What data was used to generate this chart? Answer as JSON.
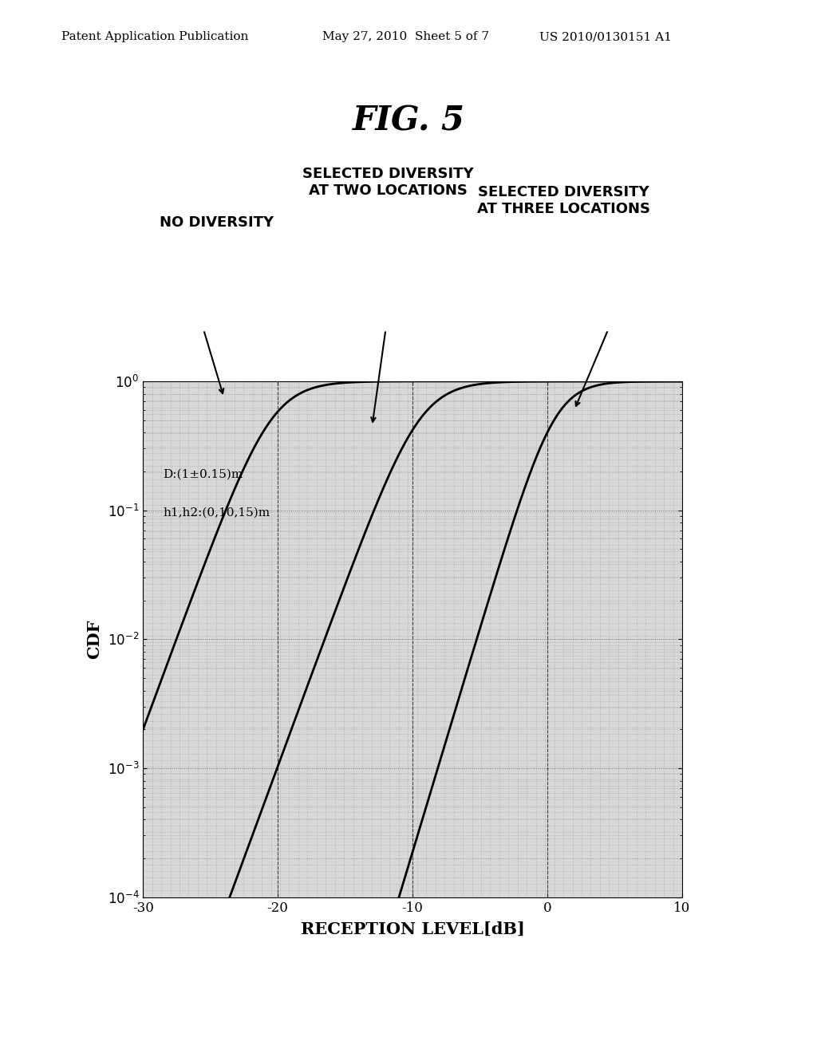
{
  "title": "FIG. 5",
  "header_left": "Patent Application Publication",
  "header_mid": "May 27, 2010  Sheet 5 of 7",
  "header_right": "US 2010/0130151 A1",
  "xlabel": "RECEPTION LEVEL[dB]",
  "ylabel": "CDF",
  "xlim": [
    -30,
    10
  ],
  "ylim_log": [
    -4,
    0
  ],
  "xticks": [
    -30,
    -20,
    -10,
    0,
    10
  ],
  "annotation_text1": "D:(1±0.15)m",
  "annotation_text2": "h1,h2:(0,10,15)m",
  "label_no_div": "NO DIVERSITY",
  "label_two_loc": "SELECTED DIVERSITY\nAT TWO LOCATIONS",
  "label_three_loc": "SELECTED DIVERSITY\nAT THREE LOCATIONS",
  "background_color": "#ffffff",
  "line_color": "#000000",
  "fig_title_fontsize": 30,
  "header_fontsize": 11,
  "axis_label_fontsize": 13,
  "tick_fontsize": 12,
  "annotation_fontsize": 10,
  "curve_label_fontsize": 12
}
